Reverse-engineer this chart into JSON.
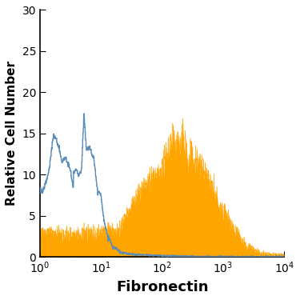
{
  "title": "",
  "xlabel": "Fibronectin",
  "ylabel": "Relative Cell Number",
  "xlim_log": [
    1.0,
    10000.0
  ],
  "ylim": [
    0,
    30
  ],
  "yticks": [
    0,
    5,
    10,
    15,
    20,
    25,
    30
  ],
  "orange_color": "#FFA500",
  "blue_color": "#5B8DB8",
  "background_color": "#FFFFFF",
  "xlabel_fontsize": 13,
  "ylabel_fontsize": 11,
  "tick_fontsize": 10,
  "blue_seed": 77,
  "orange_seed": 55
}
